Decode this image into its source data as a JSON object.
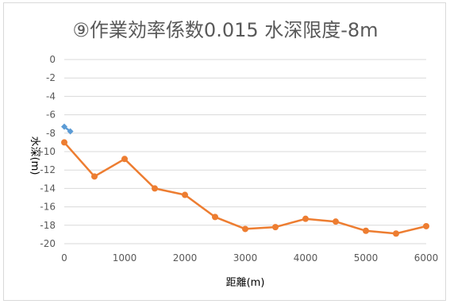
{
  "chart_data": {
    "type": "line",
    "title": "⑨作業効率係数0.015 水深限度-8m",
    "xlabel": "距離(m)",
    "ylabel": "水深(m)",
    "xlim": [
      0,
      6000
    ],
    "ylim": [
      -20,
      0
    ],
    "x_ticks": [
      "0",
      "1000",
      "2000",
      "3000",
      "4000",
      "5000",
      "6000"
    ],
    "y_ticks": [
      "0",
      "-2",
      "-4",
      "-6",
      "-8",
      "-10",
      "-12",
      "-14",
      "-16",
      "-18",
      "-20"
    ],
    "grid": true,
    "legend": "none",
    "series": [
      {
        "color": "#ed7d31",
        "marker": "circle",
        "x": [
          0,
          500,
          1000,
          1500,
          2000,
          2500,
          3000,
          3500,
          4000,
          4500,
          5000,
          5500,
          6000
        ],
        "y": [
          -9.0,
          -12.7,
          -10.8,
          -14.0,
          -14.7,
          -17.1,
          -18.4,
          -18.2,
          -17.3,
          -17.6,
          -18.6,
          -18.9,
          -18.1
        ]
      },
      {
        "color": "#5b9bd5",
        "marker": "diamond",
        "x": [
          0,
          100
        ],
        "y": [
          -7.3,
          -7.8
        ]
      }
    ]
  }
}
